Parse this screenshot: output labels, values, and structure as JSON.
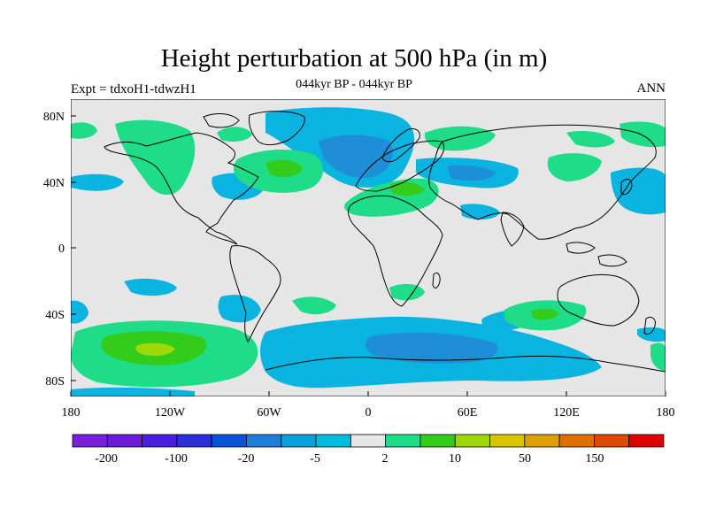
{
  "title": "Height perturbation at 500 hPa (in m)",
  "subtitle_left": "Expt = tdxoH1-tdwzH1",
  "subtitle_center": "044kyr BP - 044kyr BP",
  "subtitle_right": "ANN",
  "map": {
    "projection": "cylindrical equidistant",
    "lon_range": [
      -180,
      180
    ],
    "lat_range": [
      -90,
      90
    ],
    "background_color": "#e6e6e6",
    "coastline_color": "#000000",
    "x_ticks": [
      "180",
      "120W",
      "60W",
      "0",
      "60E",
      "120E",
      "180"
    ],
    "y_ticks": [
      "80N",
      "40N",
      "0",
      "40S",
      "80S"
    ]
  },
  "colorbar": {
    "labels": [
      "-200",
      "-100",
      "-20",
      "-5",
      "2",
      "10",
      "50",
      "150"
    ],
    "colors": [
      "#7a1fdc",
      "#6a1cd8",
      "#4a1ee0",
      "#2a2fd8",
      "#0a52d6",
      "#1f7ed8",
      "#0a9fd8",
      "#00bde0",
      "#e6e6e6",
      "#1edc88",
      "#34cc1a",
      "#9ed80a",
      "#d8c400",
      "#dea000",
      "#de7000",
      "#de4a00",
      "#e00000"
    ]
  },
  "anomalies": [
    {
      "region": "North Atlantic / Newfoundland",
      "sign": "positive",
      "level": "10"
    },
    {
      "region": "Arctic / Northern Europe",
      "sign": "negative",
      "level": "-5"
    },
    {
      "region": "Eastern Mediterranean",
      "sign": "positive",
      "level": "10"
    },
    {
      "region": "Southern Ocean south of Africa",
      "sign": "negative",
      "level": "-5"
    },
    {
      "region": "South Pacific",
      "sign": "positive",
      "level": "10"
    },
    {
      "region": "Southern Indian Ocean",
      "sign": "positive",
      "level": "2"
    }
  ]
}
